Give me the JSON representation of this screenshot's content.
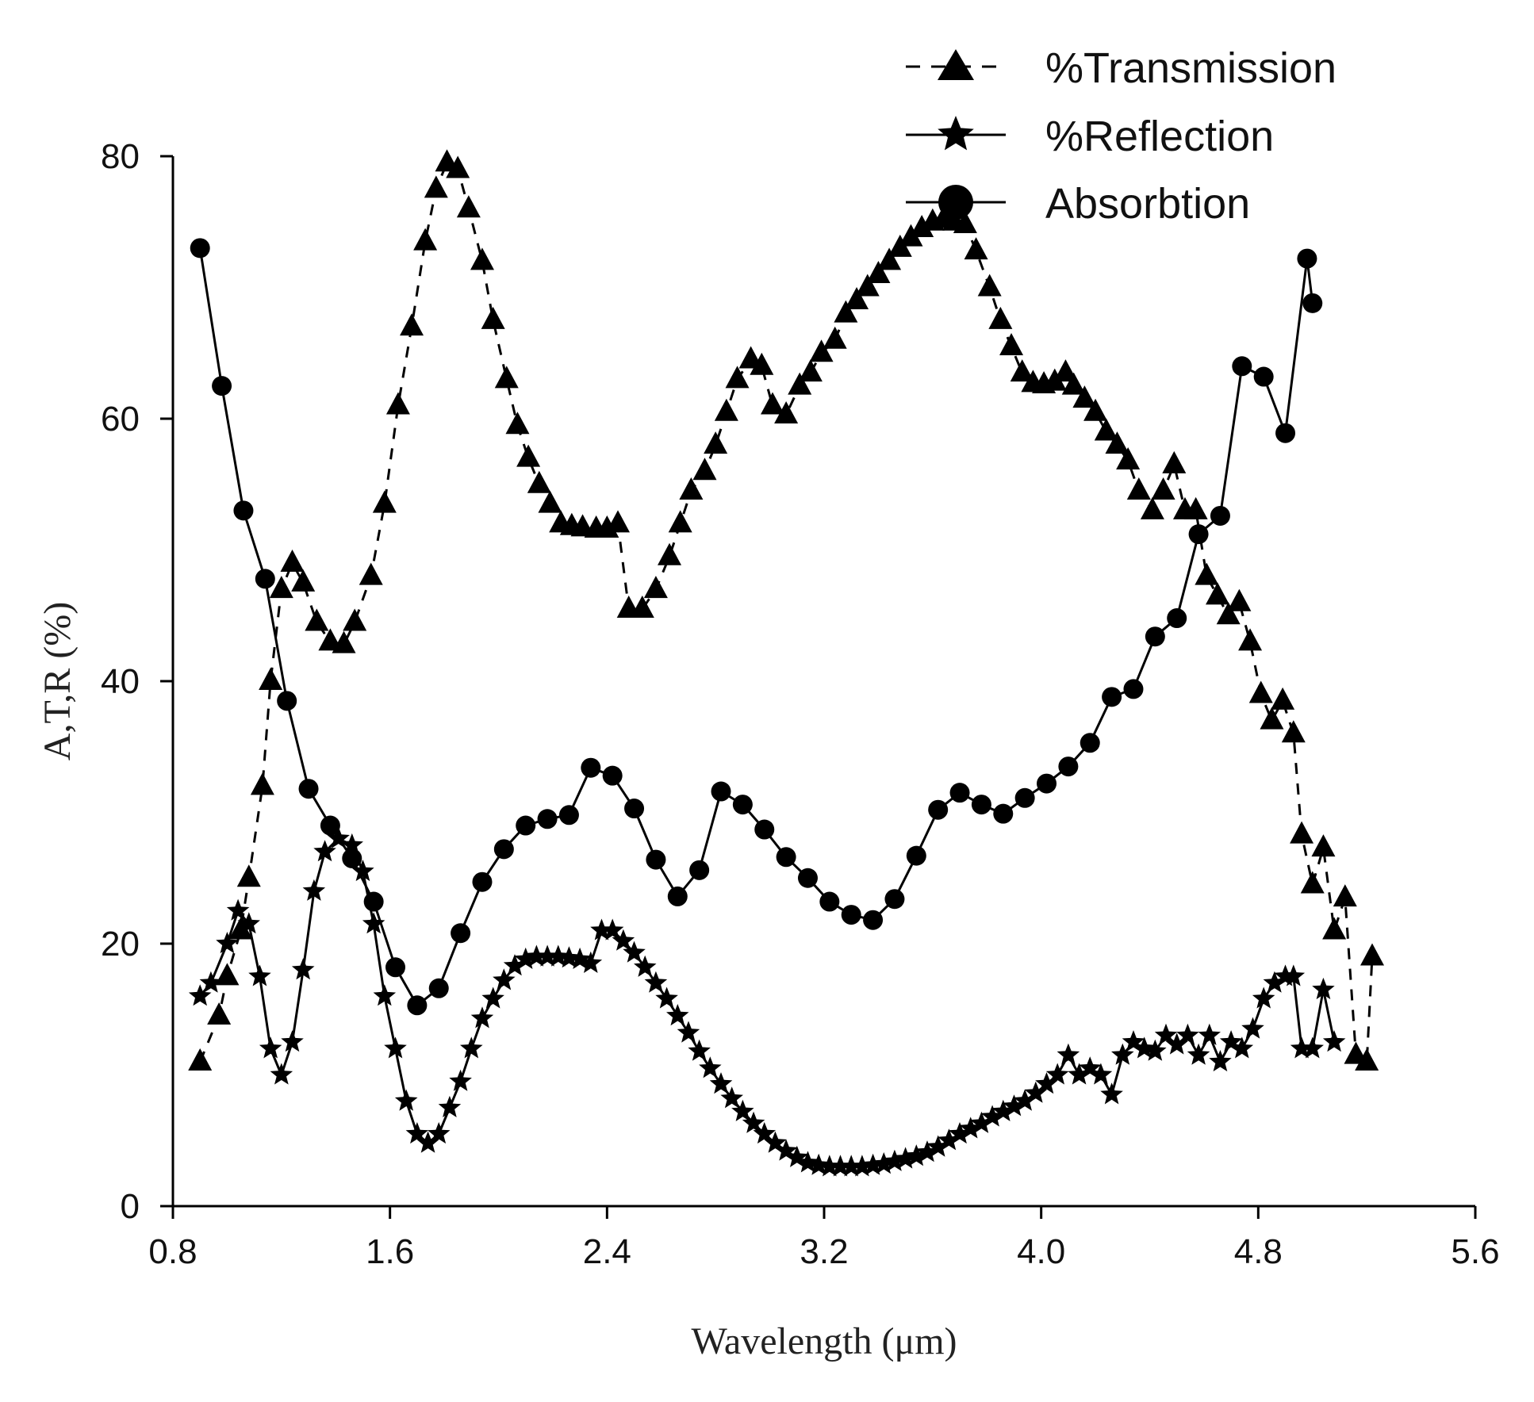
{
  "chart_data": {
    "type": "line",
    "title": "",
    "xlabel": "Wavelength (μm)",
    "ylabel": "A,T,R (%)",
    "xlim": [
      0.8,
      5.6
    ],
    "ylim": [
      0,
      80
    ],
    "grid": false,
    "legend_position": "top-right",
    "x_ticks": [
      "0.8",
      "1.6",
      "2.4",
      "3.2",
      "4.0",
      "4.8",
      "5.6"
    ],
    "y_ticks": [
      "0",
      "20",
      "40",
      "60",
      "80"
    ],
    "series": [
      {
        "name": "%Transmission",
        "marker": "triangle",
        "line_style": "dashed",
        "color": "#000000",
        "points": [
          [
            0.9,
            11
          ],
          [
            0.97,
            14.5
          ],
          [
            1.0,
            17.5
          ],
          [
            1.05,
            21
          ],
          [
            1.08,
            25
          ],
          [
            1.13,
            32
          ],
          [
            1.16,
            40
          ],
          [
            1.2,
            47
          ],
          [
            1.24,
            49
          ],
          [
            1.28,
            47.5
          ],
          [
            1.33,
            44.5
          ],
          [
            1.38,
            43
          ],
          [
            1.43,
            42.8
          ],
          [
            1.47,
            44.5
          ],
          [
            1.53,
            48
          ],
          [
            1.58,
            53.5
          ],
          [
            1.63,
            61
          ],
          [
            1.68,
            67
          ],
          [
            1.73,
            73.5
          ],
          [
            1.77,
            77.5
          ],
          [
            1.81,
            79.5
          ],
          [
            1.85,
            79
          ],
          [
            1.89,
            76
          ],
          [
            1.94,
            72
          ],
          [
            1.98,
            67.5
          ],
          [
            2.03,
            63
          ],
          [
            2.07,
            59.5
          ],
          [
            2.11,
            57
          ],
          [
            2.15,
            55
          ],
          [
            2.19,
            53.5
          ],
          [
            2.23,
            52
          ],
          [
            2.27,
            51.8
          ],
          [
            2.31,
            51.7
          ],
          [
            2.36,
            51.6
          ],
          [
            2.4,
            51.6
          ],
          [
            2.44,
            52
          ],
          [
            2.48,
            45.5
          ],
          [
            2.53,
            45.5
          ],
          [
            2.58,
            47
          ],
          [
            2.63,
            49.5
          ],
          [
            2.67,
            52
          ],
          [
            2.71,
            54.5
          ],
          [
            2.76,
            56
          ],
          [
            2.8,
            58
          ],
          [
            2.84,
            60.5
          ],
          [
            2.88,
            63
          ],
          [
            2.93,
            64.5
          ],
          [
            2.97,
            64
          ],
          [
            3.01,
            61
          ],
          [
            3.06,
            60.3
          ],
          [
            3.11,
            62.5
          ],
          [
            3.15,
            63.5
          ],
          [
            3.19,
            65
          ],
          [
            3.24,
            66
          ],
          [
            3.28,
            68
          ],
          [
            3.32,
            69
          ],
          [
            3.36,
            70
          ],
          [
            3.4,
            71
          ],
          [
            3.44,
            72
          ],
          [
            3.48,
            73
          ],
          [
            3.52,
            73.8
          ],
          [
            3.56,
            74.5
          ],
          [
            3.6,
            75
          ],
          [
            3.64,
            75.2
          ],
          [
            3.68,
            75
          ],
          [
            3.72,
            74.8
          ],
          [
            3.76,
            72.8
          ],
          [
            3.81,
            70
          ],
          [
            3.85,
            67.5
          ],
          [
            3.89,
            65.5
          ],
          [
            3.93,
            63.5
          ],
          [
            3.97,
            62.7
          ],
          [
            4.01,
            62.6
          ],
          [
            4.05,
            62.8
          ],
          [
            4.09,
            63.5
          ],
          [
            4.12,
            62.5
          ],
          [
            4.16,
            61.5
          ],
          [
            4.2,
            60.5
          ],
          [
            4.24,
            59
          ],
          [
            4.28,
            58
          ],
          [
            4.32,
            56.8
          ],
          [
            4.36,
            54.5
          ],
          [
            4.41,
            53
          ],
          [
            4.45,
            54.5
          ],
          [
            4.49,
            56.5
          ],
          [
            4.53,
            53
          ],
          [
            4.57,
            53
          ],
          [
            4.61,
            48
          ],
          [
            4.65,
            46.5
          ],
          [
            4.69,
            45
          ],
          [
            4.73,
            46
          ],
          [
            4.77,
            43
          ],
          [
            4.81,
            39
          ],
          [
            4.85,
            37
          ],
          [
            4.89,
            38.5
          ],
          [
            4.93,
            36
          ],
          [
            4.96,
            28.3
          ],
          [
            5.0,
            24.5
          ],
          [
            5.04,
            27.3
          ],
          [
            5.08,
            21
          ],
          [
            5.12,
            23.5
          ],
          [
            5.16,
            11.5
          ],
          [
            5.2,
            11
          ],
          [
            5.22,
            19
          ]
        ]
      },
      {
        "name": "%Reflection",
        "marker": "star",
        "line_style": "solid",
        "color": "#000000",
        "points": [
          [
            0.9,
            16
          ],
          [
            0.94,
            17
          ],
          [
            1.0,
            20
          ],
          [
            1.04,
            22.5
          ],
          [
            1.08,
            21.5
          ],
          [
            1.12,
            17.5
          ],
          [
            1.16,
            12
          ],
          [
            1.2,
            10
          ],
          [
            1.24,
            12.5
          ],
          [
            1.28,
            18
          ],
          [
            1.32,
            24
          ],
          [
            1.36,
            27
          ],
          [
            1.41,
            28
          ],
          [
            1.46,
            27.5
          ],
          [
            1.5,
            25.5
          ],
          [
            1.54,
            21.5
          ],
          [
            1.58,
            16
          ],
          [
            1.62,
            12
          ],
          [
            1.66,
            8
          ],
          [
            1.7,
            5.5
          ],
          [
            1.74,
            4.8
          ],
          [
            1.78,
            5.5
          ],
          [
            1.82,
            7.5
          ],
          [
            1.86,
            9.5
          ],
          [
            1.9,
            12
          ],
          [
            1.94,
            14.3
          ],
          [
            1.98,
            15.8
          ],
          [
            2.02,
            17.2
          ],
          [
            2.06,
            18.3
          ],
          [
            2.1,
            18.8
          ],
          [
            2.14,
            19
          ],
          [
            2.18,
            19
          ],
          [
            2.22,
            19
          ],
          [
            2.26,
            18.9
          ],
          [
            2.3,
            18.8
          ],
          [
            2.34,
            18.5
          ],
          [
            2.38,
            21
          ],
          [
            2.42,
            21
          ],
          [
            2.46,
            20.2
          ],
          [
            2.5,
            19.3
          ],
          [
            2.54,
            18.2
          ],
          [
            2.58,
            17
          ],
          [
            2.62,
            15.8
          ],
          [
            2.66,
            14.5
          ],
          [
            2.7,
            13.2
          ],
          [
            2.74,
            11.8
          ],
          [
            2.78,
            10.5
          ],
          [
            2.82,
            9.3
          ],
          [
            2.86,
            8.2
          ],
          [
            2.9,
            7.2
          ],
          [
            2.94,
            6.3
          ],
          [
            2.98,
            5.5
          ],
          [
            3.02,
            4.8
          ],
          [
            3.06,
            4.2
          ],
          [
            3.1,
            3.7
          ],
          [
            3.14,
            3.3
          ],
          [
            3.18,
            3.1
          ],
          [
            3.22,
            3
          ],
          [
            3.26,
            3
          ],
          [
            3.3,
            3
          ],
          [
            3.34,
            3
          ],
          [
            3.38,
            3.1
          ],
          [
            3.42,
            3.2
          ],
          [
            3.46,
            3.4
          ],
          [
            3.5,
            3.6
          ],
          [
            3.54,
            3.8
          ],
          [
            3.58,
            4.1
          ],
          [
            3.62,
            4.5
          ],
          [
            3.66,
            5
          ],
          [
            3.7,
            5.5
          ],
          [
            3.74,
            5.9
          ],
          [
            3.78,
            6.3
          ],
          [
            3.82,
            6.8
          ],
          [
            3.86,
            7.2
          ],
          [
            3.9,
            7.6
          ],
          [
            3.94,
            8
          ],
          [
            3.98,
            8.6
          ],
          [
            4.02,
            9.3
          ],
          [
            4.06,
            10
          ],
          [
            4.1,
            11.5
          ],
          [
            4.14,
            10
          ],
          [
            4.18,
            10.5
          ],
          [
            4.22,
            10
          ],
          [
            4.26,
            8.5
          ],
          [
            4.3,
            11.5
          ],
          [
            4.34,
            12.5
          ],
          [
            4.38,
            12
          ],
          [
            4.42,
            11.8
          ],
          [
            4.46,
            13
          ],
          [
            4.5,
            12.3
          ],
          [
            4.54,
            13
          ],
          [
            4.58,
            11.5
          ],
          [
            4.62,
            13
          ],
          [
            4.66,
            11
          ],
          [
            4.7,
            12.5
          ],
          [
            4.74,
            12
          ],
          [
            4.78,
            13.5
          ],
          [
            4.82,
            15.8
          ],
          [
            4.86,
            17
          ],
          [
            4.9,
            17.5
          ],
          [
            4.93,
            17.5
          ],
          [
            4.96,
            12
          ],
          [
            5.0,
            12
          ],
          [
            5.04,
            16.5
          ],
          [
            5.08,
            12.5
          ]
        ]
      },
      {
        "name": "Absorbtion",
        "marker": "circle",
        "line_style": "solid",
        "color": "#000000",
        "points": [
          [
            0.9,
            73
          ],
          [
            0.98,
            62.5
          ],
          [
            1.06,
            53
          ],
          [
            1.14,
            47.8
          ],
          [
            1.22,
            38.5
          ],
          [
            1.3,
            31.8
          ],
          [
            1.38,
            29
          ],
          [
            1.46,
            26.5
          ],
          [
            1.54,
            23.2
          ],
          [
            1.62,
            18.2
          ],
          [
            1.7,
            15.3
          ],
          [
            1.78,
            16.6
          ],
          [
            1.86,
            20.8
          ],
          [
            1.94,
            24.7
          ],
          [
            2.02,
            27.2
          ],
          [
            2.1,
            29
          ],
          [
            2.18,
            29.5
          ],
          [
            2.26,
            29.8
          ],
          [
            2.34,
            33.4
          ],
          [
            2.42,
            32.8
          ],
          [
            2.5,
            30.3
          ],
          [
            2.58,
            26.4
          ],
          [
            2.66,
            23.6
          ],
          [
            2.74,
            25.6
          ],
          [
            2.82,
            31.6
          ],
          [
            2.9,
            30.6
          ],
          [
            2.98,
            28.7
          ],
          [
            3.06,
            26.6
          ],
          [
            3.14,
            25
          ],
          [
            3.22,
            23.2
          ],
          [
            3.3,
            22.2
          ],
          [
            3.38,
            21.8
          ],
          [
            3.46,
            23.4
          ],
          [
            3.54,
            26.7
          ],
          [
            3.62,
            30.2
          ],
          [
            3.7,
            31.5
          ],
          [
            3.78,
            30.6
          ],
          [
            3.86,
            29.9
          ],
          [
            3.94,
            31.1
          ],
          [
            4.02,
            32.2
          ],
          [
            4.1,
            33.5
          ],
          [
            4.18,
            35.3
          ],
          [
            4.26,
            38.8
          ],
          [
            4.34,
            39.4
          ],
          [
            4.42,
            43.4
          ],
          [
            4.5,
            44.8
          ],
          [
            4.58,
            51.2
          ],
          [
            4.66,
            52.6
          ],
          [
            4.74,
            64
          ],
          [
            4.82,
            63.2
          ],
          [
            4.9,
            58.9
          ],
          [
            4.98,
            72.2
          ],
          [
            5.0,
            68.8
          ]
        ]
      }
    ]
  }
}
